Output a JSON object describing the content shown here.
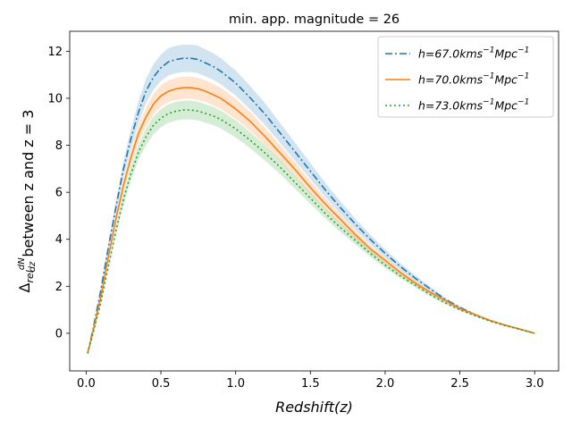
{
  "chart_data": {
    "type": "line",
    "title": "min. app. magnitude = 26",
    "xlabel": "Redshift(z)",
    "ylabel": "Δrel dN/dz between z and z = 3",
    "ylabel_parts": {
      "delta": "Δ",
      "sub": "rel",
      "num": "dN",
      "den": "dz",
      "rest": " between z and z = 3"
    },
    "xlim": [
      -0.11,
      3.16
    ],
    "ylim": [
      -1.6,
      12.85
    ],
    "xticks": [
      0.0,
      0.5,
      1.0,
      1.5,
      2.0,
      2.5,
      3.0
    ],
    "xtick_labels": [
      "0.0",
      "0.5",
      "1.0",
      "1.5",
      "2.0",
      "2.5",
      "3.0"
    ],
    "yticks": [
      0,
      2,
      4,
      6,
      8,
      10,
      12
    ],
    "ytick_labels": [
      "0",
      "2",
      "4",
      "6",
      "8",
      "10",
      "12"
    ],
    "legend_position": "top-right",
    "x": [
      0.01,
      0.05,
      0.1,
      0.15,
      0.2,
      0.25,
      0.3,
      0.35,
      0.4,
      0.45,
      0.5,
      0.55,
      0.6,
      0.65,
      0.7,
      0.75,
      0.8,
      0.85,
      0.9,
      1.0,
      1.1,
      1.2,
      1.3,
      1.4,
      1.5,
      1.6,
      1.7,
      1.8,
      1.9,
      2.0,
      2.1,
      2.2,
      2.3,
      2.4,
      2.5,
      2.6,
      2.7,
      2.8,
      2.9,
      3.0
    ],
    "series": [
      {
        "name": "h=67.0kms⁻¹Mpc⁻¹",
        "legend": {
          "prefix": "h=67.0kms",
          "sup1": "−1",
          "mid": "Mpc",
          "sup2": "−1"
        },
        "color": "#1f77b4",
        "dash": "8,3,2,3",
        "values": [
          -0.85,
          0.3,
          1.9,
          3.7,
          5.4,
          7.0,
          8.3,
          9.4,
          10.3,
          10.9,
          11.3,
          11.55,
          11.65,
          11.7,
          11.7,
          11.65,
          11.5,
          11.35,
          11.15,
          10.65,
          10.0,
          9.3,
          8.5,
          7.7,
          6.9,
          6.1,
          5.35,
          4.65,
          4.0,
          3.4,
          2.85,
          2.35,
          1.9,
          1.45,
          1.1,
          0.8,
          0.55,
          0.35,
          0.18,
          0.0
        ],
        "band": 0.5
      },
      {
        "name": "h=70.0kms⁻¹Mpc⁻¹",
        "legend": {
          "prefix": "h=70.0kms",
          "sup1": "−1",
          "mid": "Mpc",
          "sup2": "−1"
        },
        "color": "#ff7f0e",
        "dash": "",
        "values": [
          -0.85,
          0.2,
          1.6,
          3.3,
          4.9,
          6.3,
          7.5,
          8.5,
          9.2,
          9.75,
          10.1,
          10.3,
          10.4,
          10.45,
          10.45,
          10.4,
          10.3,
          10.15,
          10.0,
          9.55,
          9.0,
          8.35,
          7.65,
          6.95,
          6.2,
          5.5,
          4.85,
          4.2,
          3.6,
          3.1,
          2.6,
          2.15,
          1.75,
          1.4,
          1.05,
          0.8,
          0.55,
          0.35,
          0.18,
          0.0
        ],
        "band": 0.45
      },
      {
        "name": "h=73.0kms⁻¹Mpc⁻¹",
        "legend": {
          "prefix": "h=73.0kms",
          "sup1": "−1",
          "mid": "Mpc",
          "sup2": "−1"
        },
        "color": "#2ca02c",
        "dash": "2,3",
        "values": [
          -0.85,
          0.1,
          1.35,
          2.9,
          4.4,
          5.7,
          6.8,
          7.7,
          8.35,
          8.85,
          9.15,
          9.35,
          9.45,
          9.5,
          9.5,
          9.45,
          9.35,
          9.25,
          9.1,
          8.7,
          8.2,
          7.65,
          7.05,
          6.4,
          5.75,
          5.1,
          4.5,
          3.95,
          3.4,
          2.9,
          2.45,
          2.05,
          1.65,
          1.3,
          1.0,
          0.75,
          0.52,
          0.33,
          0.17,
          0.0
        ],
        "band": 0.42
      }
    ]
  }
}
